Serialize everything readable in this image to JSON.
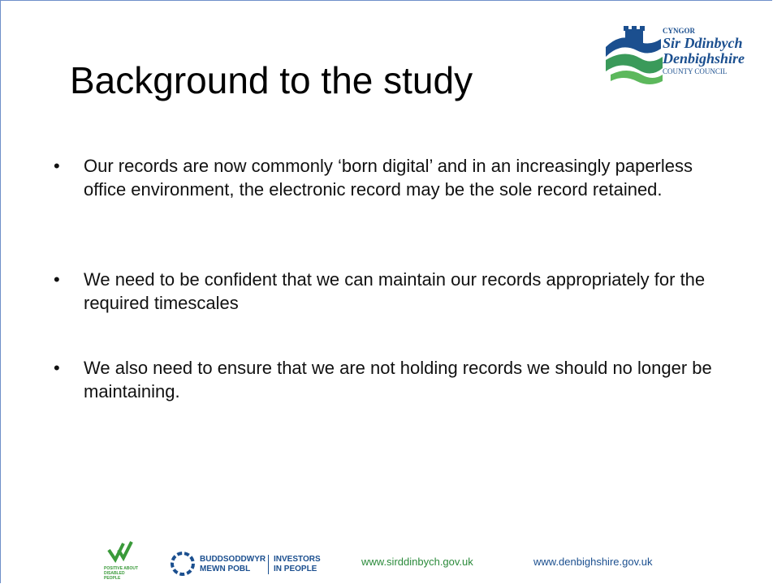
{
  "slide": {
    "title": "Background to the study",
    "logo": {
      "line1": "CYNGOR",
      "line2": "Sir Ddinbych",
      "line3": "Denbighshire",
      "line4": "COUNTY COUNCIL"
    },
    "bullets": [
      "Our records are now commonly ‘born digital’ and in an increasingly paperless office environment, the electronic record may be the sole record retained.",
      "We need to be confident that we can maintain our records appropriately for the required timescales",
      "We also need to ensure that we are not holding records we should no longer be maintaining."
    ],
    "footer": {
      "disability_badge": "POSITIVE ABOUT DISABLED PEOPLE",
      "investors_welsh": [
        "BUDDSODDWYR",
        "MEWN POBL"
      ],
      "investors_english": [
        "INVESTORS",
        "IN PEOPLE"
      ],
      "url_welsh": "www.sirddinbych.gov.uk",
      "url_english": "www.denbighshire.gov.uk"
    }
  }
}
